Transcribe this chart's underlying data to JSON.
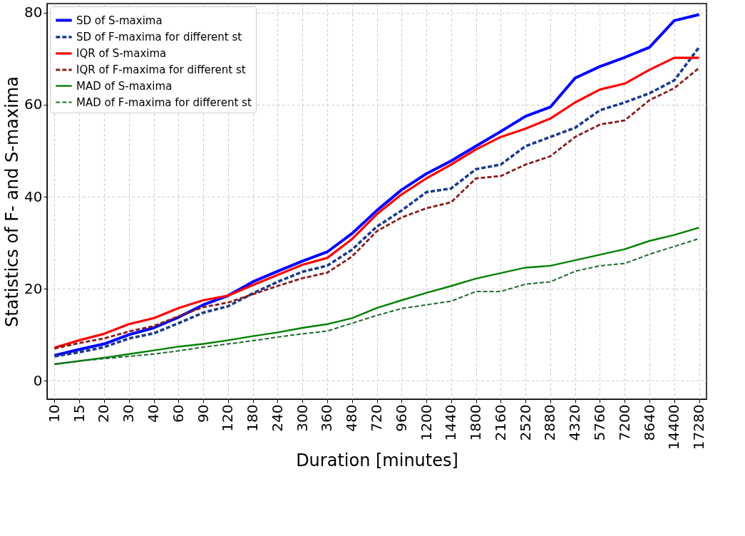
{
  "chart_data": {
    "type": "line",
    "xlabel": "Duration [minutes]",
    "ylabel": "Statistics of F- and S-maxima",
    "categories": [
      "10",
      "15",
      "20",
      "30",
      "40",
      "60",
      "90",
      "120",
      "180",
      "240",
      "300",
      "360",
      "480",
      "720",
      "960",
      "1200",
      "1440",
      "1800",
      "2160",
      "2520",
      "2880",
      "4320",
      "5760",
      "7200",
      "8640",
      "14400",
      "17280"
    ],
    "ylim": [
      -4,
      82
    ],
    "yticks": [
      0,
      20,
      40,
      60,
      80
    ],
    "grid": true,
    "legend": "top left",
    "marker": "none",
    "series": [
      {
        "name": "SD of S-maxima",
        "color": "#0000ff",
        "line_style": "solid",
        "values": [
          5.5,
          6.8,
          8,
          10,
          11.5,
          13.8,
          16.5,
          18.5,
          21.5,
          23.8,
          26,
          28,
          32,
          37,
          41.5,
          45,
          47.8,
          51,
          54.2,
          57.5,
          59.5,
          65.8,
          68.3,
          70.3,
          72.5,
          78.3,
          79.6
        ]
      },
      {
        "name": "SD of F-maxima for different st",
        "color": "#1a3a8f",
        "line_style": "dashed",
        "values": [
          5.3,
          6.2,
          7.3,
          9.2,
          10.3,
          12.5,
          14.8,
          16.2,
          19,
          21.5,
          23.7,
          25,
          28.5,
          33.5,
          37,
          41,
          41.8,
          46,
          47,
          51,
          53,
          55,
          58.8,
          60.5,
          62.5,
          65.3,
          72.5
        ]
      },
      {
        "name": "IQR of S-maxima",
        "color": "#ff0000",
        "line_style": "solid",
        "values": [
          7.2,
          8.8,
          10.2,
          12.3,
          13.6,
          15.8,
          17.5,
          18.5,
          20.8,
          23,
          25.2,
          26.7,
          30.8,
          36.2,
          40.5,
          44,
          47,
          50.3,
          53,
          54.8,
          57,
          60.5,
          63.3,
          64.6,
          67.6,
          70.2,
          70.2
        ]
      },
      {
        "name": "IQR of F-maxima for different st",
        "color": "#8b1a1a",
        "line_style": "dashed",
        "values": [
          7,
          8.2,
          9.2,
          10.7,
          11.9,
          14,
          16,
          17,
          18.8,
          20.6,
          22.3,
          23.5,
          27,
          32.5,
          35.5,
          37.5,
          38.8,
          44,
          44.5,
          47,
          48.8,
          53,
          55.7,
          56.6,
          61,
          63.6,
          68
        ]
      },
      {
        "name": "MAD of S-maxima",
        "color": "#008000",
        "line_style": "solid",
        "values": [
          3.6,
          4.3,
          5,
          5.8,
          6.6,
          7.4,
          8,
          8.8,
          9.7,
          10.5,
          11.5,
          12.3,
          13.6,
          15.8,
          17.5,
          19.1,
          20.6,
          22.2,
          23.4,
          24.6,
          25,
          26.2,
          27.4,
          28.6,
          30.4,
          31.7,
          33.3
        ]
      },
      {
        "name": "MAD of F-maxima for different st",
        "color": "#1e6b2e",
        "line_style": "dashed",
        "values": [
          3.6,
          4.3,
          4.8,
          5.3,
          5.8,
          6.5,
          7.3,
          8,
          8.7,
          9.5,
          10.2,
          10.8,
          12.5,
          14.2,
          15.7,
          16.5,
          17.3,
          19.4,
          19.4,
          21,
          21.5,
          23.8,
          25,
          25.5,
          27.5,
          29.2,
          30.9
        ]
      }
    ]
  }
}
